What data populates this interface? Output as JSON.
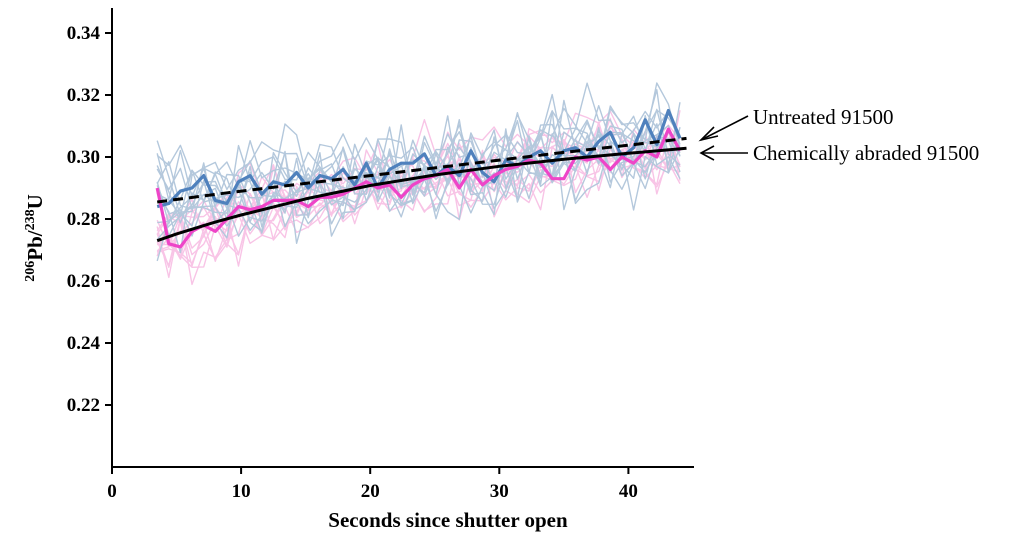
{
  "chart_data": {
    "type": "line",
    "title": "",
    "xlabel": "Seconds since shutter open",
    "ylabel": {
      "sup1": "206",
      "base1": "Pb/",
      "sup2": "238",
      "base2": "U"
    },
    "xlim": [
      0,
      45
    ],
    "ylim": [
      0.2,
      0.35
    ],
    "x_ticks": [
      0,
      10,
      20,
      30,
      40
    ],
    "x_tick_labels": [
      "0",
      "10",
      "20",
      "30",
      "40"
    ],
    "y_ticks": [
      0.22,
      0.24,
      0.26,
      0.28,
      0.3,
      0.32,
      0.34
    ],
    "y_tick_labels": [
      "0.22",
      "0.24",
      "0.26",
      "0.28",
      "0.30",
      "0.32",
      "0.34"
    ],
    "grid": false,
    "legend": "none",
    "annotations": [
      {
        "text": "Untreated 91500",
        "points_to": "untreated-fit"
      },
      {
        "text": "Chemically abraded 91500",
        "points_to": "abraded-fit"
      }
    ],
    "individual_runs": {
      "untreated_color": "#b4c8dc",
      "abraded_color": "#f8c4e6",
      "untreated_count": 14,
      "abraded_count": 12,
      "x_start": 3.5,
      "x_step": 0.9,
      "n_points": 46
    },
    "series": [
      {
        "key": "untreated-mean",
        "color": "#4f81bd",
        "style": "solid",
        "x": [
          3.5,
          4.4,
          5.3,
          6.2,
          7.1,
          8.0,
          8.9,
          9.8,
          10.7,
          11.6,
          12.5,
          13.4,
          14.3,
          15.2,
          16.1,
          17.0,
          17.9,
          18.8,
          19.7,
          20.6,
          21.5,
          22.4,
          23.3,
          24.2,
          25.1,
          26.0,
          26.9,
          27.8,
          28.7,
          29.6,
          30.5,
          31.4,
          32.3,
          33.2,
          34.1,
          35.0,
          35.9,
          36.8,
          37.7,
          38.6,
          39.5,
          40.4,
          41.3,
          42.2,
          43.1,
          44.0
        ],
        "y": [
          0.284,
          0.285,
          0.289,
          0.29,
          0.294,
          0.286,
          0.285,
          0.292,
          0.294,
          0.288,
          0.292,
          0.291,
          0.295,
          0.29,
          0.294,
          0.293,
          0.296,
          0.291,
          0.298,
          0.29,
          0.296,
          0.298,
          0.298,
          0.301,
          0.294,
          0.297,
          0.294,
          0.302,
          0.295,
          0.292,
          0.299,
          0.297,
          0.3,
          0.302,
          0.298,
          0.302,
          0.303,
          0.3,
          0.305,
          0.308,
          0.3,
          0.303,
          0.312,
          0.304,
          0.315,
          0.306
        ]
      },
      {
        "key": "abraded-mean",
        "color": "#ee45c8",
        "style": "solid",
        "x": [
          3.5,
          4.4,
          5.3,
          6.2,
          7.1,
          8.0,
          8.9,
          9.8,
          10.7,
          11.6,
          12.5,
          13.4,
          14.3,
          15.2,
          16.1,
          17.0,
          17.9,
          18.8,
          19.7,
          20.6,
          21.5,
          22.4,
          23.3,
          24.2,
          25.1,
          26.0,
          26.9,
          27.8,
          28.7,
          29.6,
          30.5,
          31.4,
          32.3,
          33.2,
          34.1,
          35.0,
          35.9,
          36.8,
          37.7,
          38.6,
          39.5,
          40.4,
          41.3,
          42.2,
          43.1,
          44.0
        ],
        "y": [
          0.29,
          0.272,
          0.271,
          0.276,
          0.278,
          0.276,
          0.28,
          0.284,
          0.283,
          0.284,
          0.286,
          0.286,
          0.286,
          0.284,
          0.287,
          0.287,
          0.288,
          0.29,
          0.292,
          0.29,
          0.291,
          0.287,
          0.291,
          0.293,
          0.294,
          0.296,
          0.29,
          0.296,
          0.291,
          0.294,
          0.296,
          0.297,
          0.299,
          0.298,
          0.293,
          0.293,
          0.3,
          0.299,
          0.3,
          0.296,
          0.3,
          0.298,
          0.302,
          0.3,
          0.309,
          0.302
        ]
      },
      {
        "key": "untreated-fit",
        "color": "#000000",
        "style": "dashed",
        "x": [
          3.5,
          9,
          15,
          20,
          25,
          30,
          35,
          40,
          44.5
        ],
        "y": [
          0.2855,
          0.2885,
          0.2915,
          0.294,
          0.2965,
          0.299,
          0.3015,
          0.3038,
          0.306
        ]
      },
      {
        "key": "abraded-fit",
        "color": "#000000",
        "style": "solid",
        "x": [
          3.5,
          5,
          8,
          10,
          15,
          20,
          25,
          30,
          35,
          40,
          44.5
        ],
        "y": [
          0.273,
          0.2752,
          0.279,
          0.2813,
          0.2865,
          0.2908,
          0.2942,
          0.297,
          0.2993,
          0.3012,
          0.3028
        ]
      }
    ]
  }
}
